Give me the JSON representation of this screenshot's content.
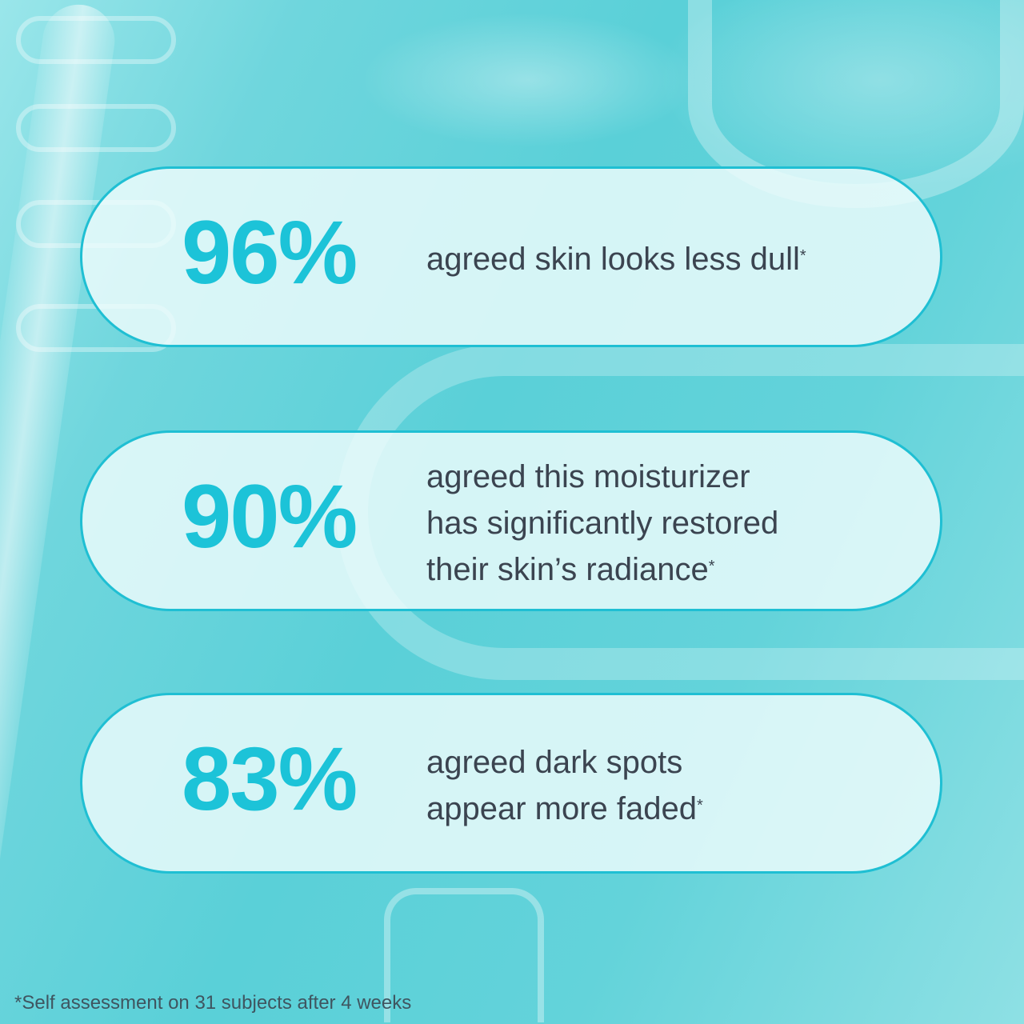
{
  "colors": {
    "accent": "#1cc3d8",
    "text": "#3b4450",
    "border": "#1fbfd3"
  },
  "stats": [
    {
      "value": "96%",
      "lines": [
        "agreed skin looks less dull"
      ],
      "mark": "*"
    },
    {
      "value": "90%",
      "lines": [
        "agreed this moisturizer",
        "has significantly restored",
        "their skin’s radiance"
      ],
      "mark": "*"
    },
    {
      "value": "83%",
      "lines": [
        "agreed dark spots",
        "appear more faded"
      ],
      "mark": "*"
    }
  ],
  "footnote": "*Self assessment on 31 subjects after 4 weeks"
}
